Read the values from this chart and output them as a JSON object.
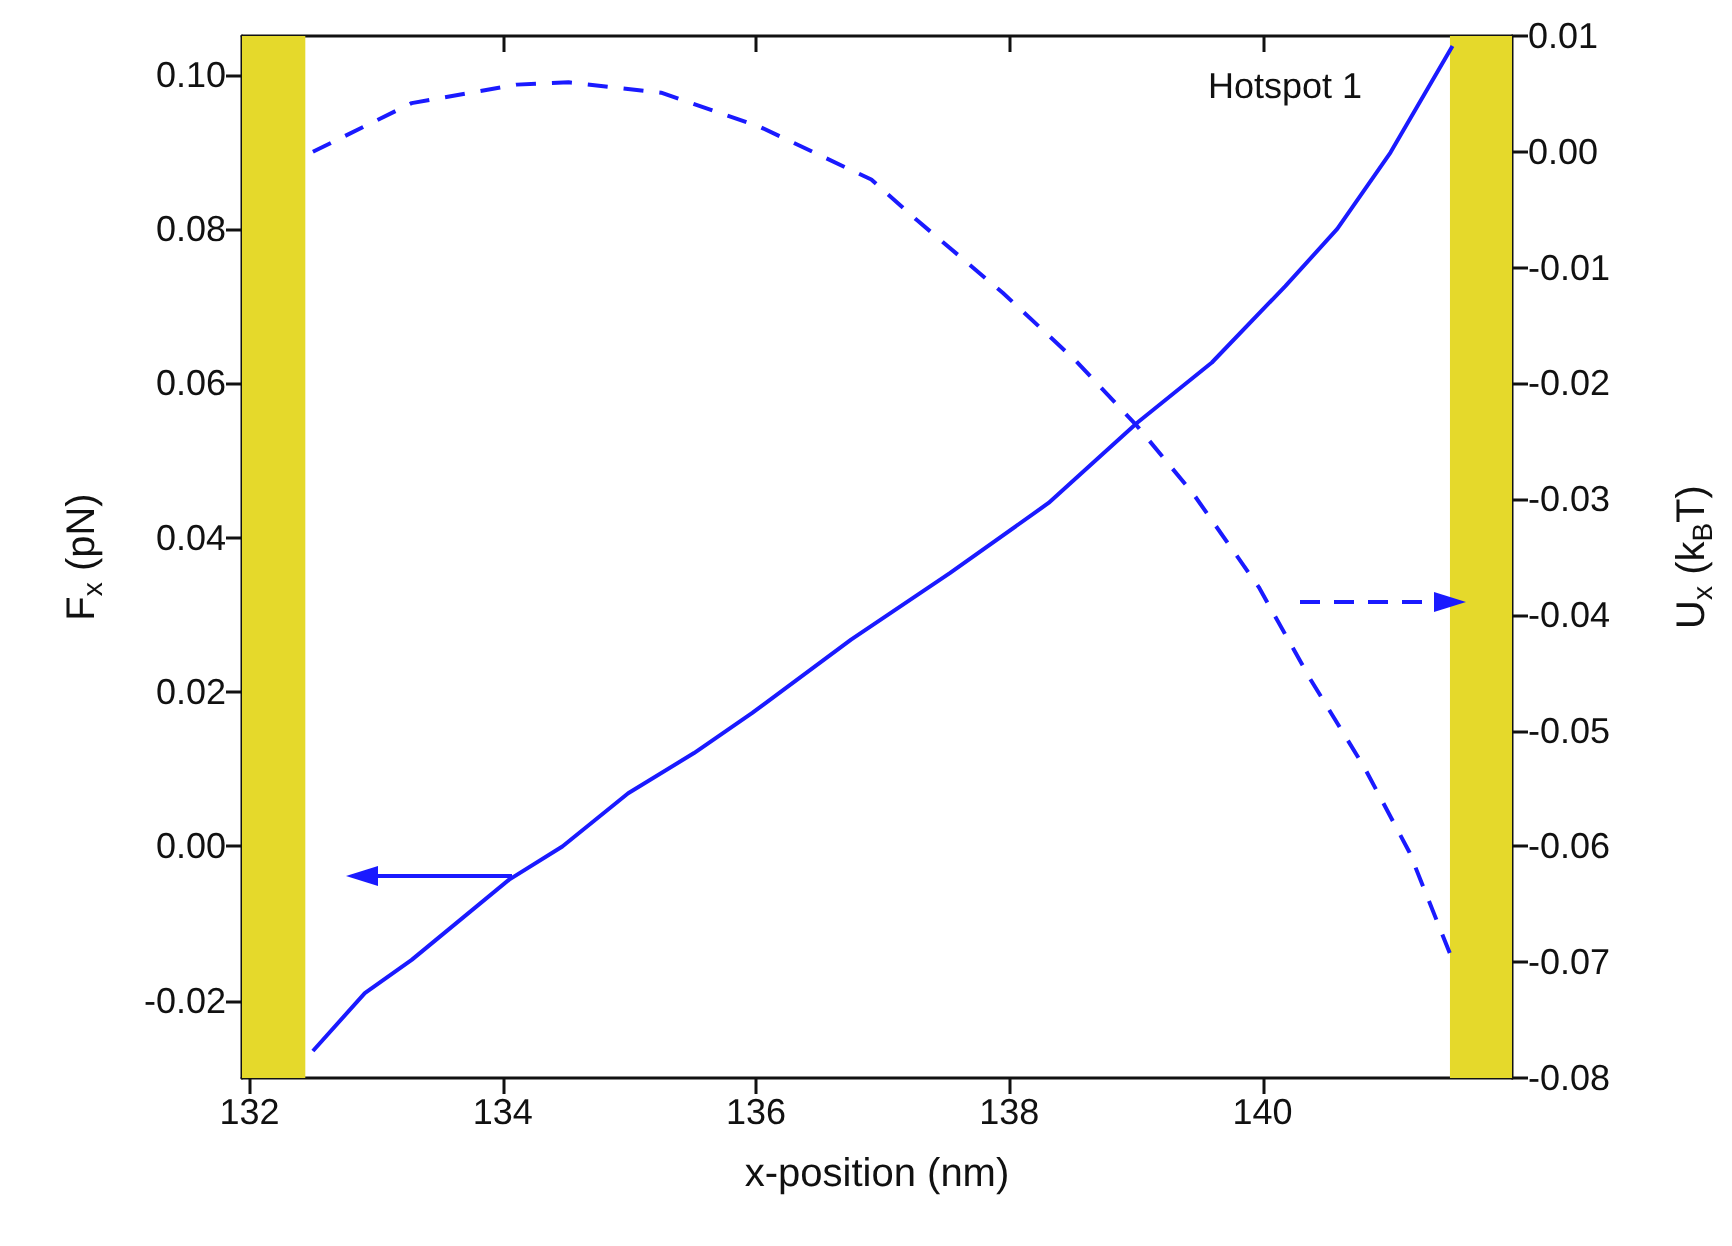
{
  "chart_data": {
    "type": "line",
    "xlabel": "x-position (nm)",
    "ylabel": "F$_{x}$ (pN)",
    "y2label": "U$_{x}$ (k$_{B}$T)",
    "annotations": [
      "Hotspot 1"
    ],
    "series": [
      {
        "color": "#1a1aff",
        "line_style": "solid",
        "x": [
          132.5,
          132.91,
          133.28,
          134.05,
          134.47,
          134.99,
          135.51,
          135.97,
          136.75,
          137.53,
          138.31,
          139.01,
          139.6,
          140.18,
          140.59,
          141.01,
          141.5
        ],
        "values": [
          -0.0265,
          -0.019,
          -0.0147,
          -0.0043,
          0.0,
          0.0069,
          0.0121,
          0.0173,
          0.0268,
          0.0354,
          0.0445,
          0.0549,
          0.0627,
          0.0726,
          0.08,
          0.0899,
          0.1037
        ]
      },
      {
        "color": "#1a1aff",
        "line_style": "dashed",
        "axis": "y2",
        "x": [
          132.5,
          133.28,
          134.11,
          134.52,
          135.25,
          136.02,
          136.91,
          137.27,
          137.95,
          138.52,
          139.01,
          139.45,
          139.97,
          140.38,
          140.8,
          141.16,
          141.5
        ],
        "values": [
          0.0,
          0.0042,
          0.0058,
          0.006,
          0.0051,
          0.0022,
          -0.0024,
          -0.0059,
          -0.0122,
          -0.018,
          -0.0237,
          -0.0295,
          -0.0376,
          -0.0456,
          -0.0531,
          -0.0605,
          -0.0698
        ]
      }
    ],
    "marker": "none",
    "xlim": [
      131.94,
      141.97
    ],
    "xticks": [
      132,
      134,
      136,
      138,
      140
    ],
    "ylim": [
      -0.03,
      0.105
    ],
    "yticks": [
      {
        "value": -0.02,
        "label": "-0.02"
      },
      {
        "value": 0,
        "label": "0.00"
      },
      {
        "value": 0.02,
        "label": "0.02"
      },
      {
        "value": 0.04,
        "label": "0.04"
      },
      {
        "value": 0.06,
        "label": "0.06"
      },
      {
        "value": 0.08,
        "label": "0.08"
      },
      {
        "value": 0.1,
        "label": "0.10"
      }
    ],
    "y2lim": [
      -0.08,
      0.01
    ],
    "y2ticks": [
      {
        "value": -0.08,
        "label": "-0.08"
      },
      {
        "value": -0.07,
        "label": "-0.07"
      },
      {
        "value": -0.06,
        "label": "-0.06"
      },
      {
        "value": -0.05,
        "label": "-0.05"
      },
      {
        "value": -0.04,
        "label": "-0.04"
      },
      {
        "value": -0.03,
        "label": "-0.03"
      },
      {
        "value": -0.02,
        "label": "-0.02"
      },
      {
        "value": -0.01,
        "label": "-0.01"
      },
      {
        "value": 0,
        "label": "0.00"
      },
      {
        "value": 0.01,
        "label": "0.01"
      }
    ],
    "bands": [
      {
        "axis": "x",
        "from": 131.94,
        "to": 132.44,
        "color": "#e5d92b"
      },
      {
        "axis": "x",
        "from": 141.48,
        "to": 141.97,
        "color": "#e5d92b"
      }
    ],
    "grid": false
  }
}
